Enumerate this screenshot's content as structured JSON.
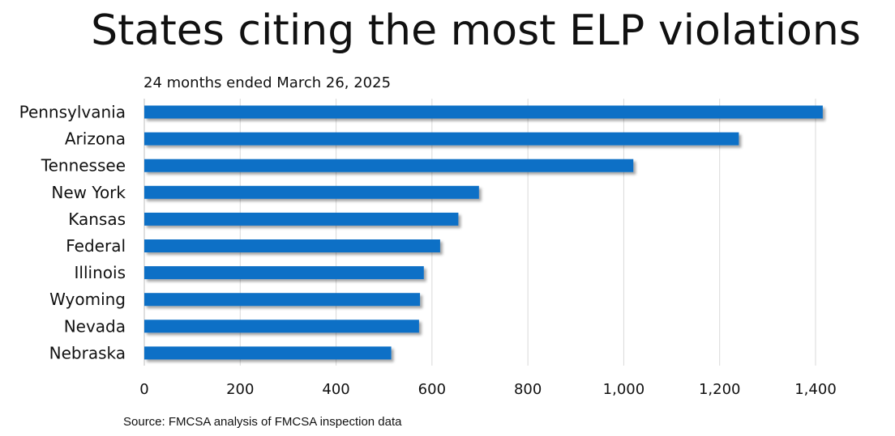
{
  "chart_data": {
    "type": "bar",
    "orientation": "horizontal",
    "title": "States citing the most ELP violations",
    "subtitle": "24 months ended March 26, 2025",
    "source": "Source: FMCSA analysis of FMCSA inspection data",
    "categories": [
      "Pennsylvania",
      "Arizona",
      "Tennessee",
      "New York",
      "Kansas",
      "Federal",
      "Illinois",
      "Wyoming",
      "Nevada",
      "Nebraska"
    ],
    "values": [
      1415,
      1240,
      1020,
      698,
      655,
      617,
      583,
      575,
      573,
      515
    ],
    "xlim": [
      0,
      1400
    ],
    "xticks": [
      0,
      200,
      400,
      600,
      800,
      1000,
      1200,
      1400
    ],
    "xtick_labels": [
      "0",
      "200",
      "400",
      "600",
      "800",
      "1,000",
      "1,200",
      "1,400"
    ],
    "grid": true,
    "legend": "none",
    "bar_color": "#0f6fc6"
  }
}
